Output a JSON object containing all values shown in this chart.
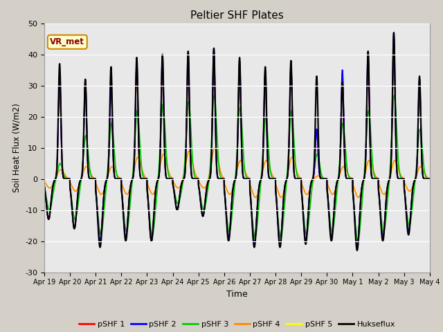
{
  "title": "Peltier SHF Plates",
  "ylabel": "Soil Heat Flux (W/m2)",
  "xlabel": "Time",
  "ylim": [
    -30,
    50
  ],
  "fig_bg_color": "#d4d0c8",
  "plot_bg_color": "#e8e8e8",
  "annotation_text": "VR_met",
  "annotation_color": "#8b0000",
  "annotation_bg": "#ffffcc",
  "annotation_border": "#cc8800",
  "series_colors": {
    "pSHF 1": "#ff0000",
    "pSHF 2": "#0000ff",
    "pSHF 3": "#00cc00",
    "pSHF 4": "#ff8800",
    "pSHF 5": "#ffff00",
    "Hukseflux": "#000000"
  },
  "xtick_labels": [
    "Apr 19",
    "Apr 20",
    "Apr 21",
    "Apr 22",
    "Apr 23",
    "Apr 24",
    "Apr 25",
    "Apr 26",
    "Apr 27",
    "Apr 28",
    "Apr 29",
    "Apr 30",
    "May 1",
    "May 2",
    "May 3",
    "May 4"
  ],
  "ytick_values": [
    -30,
    -20,
    -10,
    0,
    10,
    20,
    30,
    40,
    50
  ],
  "n_days": 15,
  "pts_per_day": 144,
  "day_peaks": {
    "huk": [
      37,
      32,
      36,
      39,
      40,
      41,
      42,
      39,
      36,
      38,
      33,
      31,
      41,
      47,
      33
    ],
    "p1": [
      33,
      32,
      30,
      37,
      37,
      37,
      41,
      38,
      35,
      37,
      16,
      34,
      38,
      45,
      32
    ],
    "p2": [
      33,
      31,
      30,
      38,
      40,
      41,
      42,
      38,
      35,
      37,
      16,
      35,
      41,
      47,
      32
    ],
    "p3": [
      5,
      14,
      18,
      22,
      24,
      25,
      27,
      23,
      20,
      22,
      8,
      18,
      22,
      27,
      16
    ],
    "p4": [
      3,
      4,
      4,
      7,
      8,
      9,
      10,
      6,
      6,
      7,
      1,
      4,
      6,
      6,
      4
    ],
    "p5": [
      3,
      4,
      4,
      7,
      8,
      8,
      10,
      6,
      6,
      7,
      1,
      4,
      5,
      5,
      4
    ]
  },
  "day_troughs": {
    "huk": [
      -13,
      -16,
      -22,
      -20,
      -20,
      -10,
      -12,
      -20,
      -22,
      -22,
      -21,
      -20,
      -23,
      -20,
      -18
    ],
    "p1": [
      -13,
      -16,
      -20,
      -19,
      -20,
      -10,
      -12,
      -19,
      -21,
      -21,
      -20,
      -19,
      -22,
      -19,
      -17
    ],
    "p2": [
      -13,
      -16,
      -20,
      -19,
      -20,
      -10,
      -12,
      -19,
      -21,
      -21,
      -20,
      -19,
      -22,
      -19,
      -17
    ],
    "p3": [
      -10,
      -13,
      -18,
      -17,
      -18,
      -8,
      -10,
      -17,
      -19,
      -19,
      -18,
      -17,
      -20,
      -17,
      -15
    ],
    "p4": [
      -3,
      -4,
      -5,
      -5,
      -5,
      -3,
      -3,
      -5,
      -6,
      -6,
      -5,
      -5,
      -6,
      -5,
      -4
    ],
    "p5": [
      -3,
      -4,
      -5,
      -5,
      -5,
      -3,
      -3,
      -5,
      -6,
      -6,
      -5,
      -5,
      -6,
      -5,
      -4
    ]
  }
}
